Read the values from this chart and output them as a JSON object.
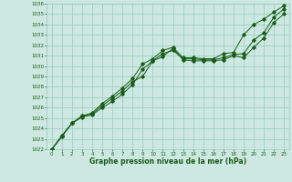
{
  "title": "Graphe pression niveau de la mer (hPa)",
  "bg_color": "#cce8e0",
  "plot_bg_color": "#cce8e0",
  "grid_color": "#99ccbb",
  "line_color": "#1a5c1a",
  "x_ticks": [
    0,
    1,
    2,
    3,
    4,
    5,
    6,
    7,
    8,
    9,
    10,
    11,
    12,
    13,
    14,
    15,
    16,
    17,
    18,
    19,
    20,
    21,
    22,
    23
  ],
  "ylim": [
    1022,
    1036
  ],
  "yticks": [
    1022,
    1023,
    1024,
    1025,
    1026,
    1027,
    1028,
    1029,
    1030,
    1031,
    1032,
    1033,
    1034,
    1035,
    1036
  ],
  "series1": [
    1022.0,
    1023.2,
    1024.5,
    1025.1,
    1025.3,
    1026.0,
    1026.6,
    1027.3,
    1028.2,
    1029.7,
    1030.5,
    1030.9,
    1031.7,
    1030.6,
    1030.5,
    1030.5,
    1030.5,
    1030.6,
    1031.0,
    1030.8,
    1031.8,
    1032.7,
    1034.2,
    1035.0
  ],
  "series2": [
    1022.0,
    1023.3,
    1024.5,
    1025.2,
    1025.4,
    1026.2,
    1026.9,
    1027.6,
    1028.5,
    1029.0,
    1030.5,
    1031.2,
    1031.5,
    1030.7,
    1030.7,
    1030.6,
    1030.6,
    1030.8,
    1031.1,
    1031.2,
    1032.5,
    1033.2,
    1034.7,
    1035.5
  ],
  "series3": [
    1022.0,
    1023.3,
    1024.5,
    1025.2,
    1025.5,
    1026.4,
    1027.1,
    1027.9,
    1028.8,
    1030.2,
    1030.7,
    1031.5,
    1031.8,
    1030.8,
    1030.8,
    1030.7,
    1030.7,
    1031.2,
    1031.3,
    1033.0,
    1034.0,
    1034.5,
    1035.2,
    1035.8
  ]
}
